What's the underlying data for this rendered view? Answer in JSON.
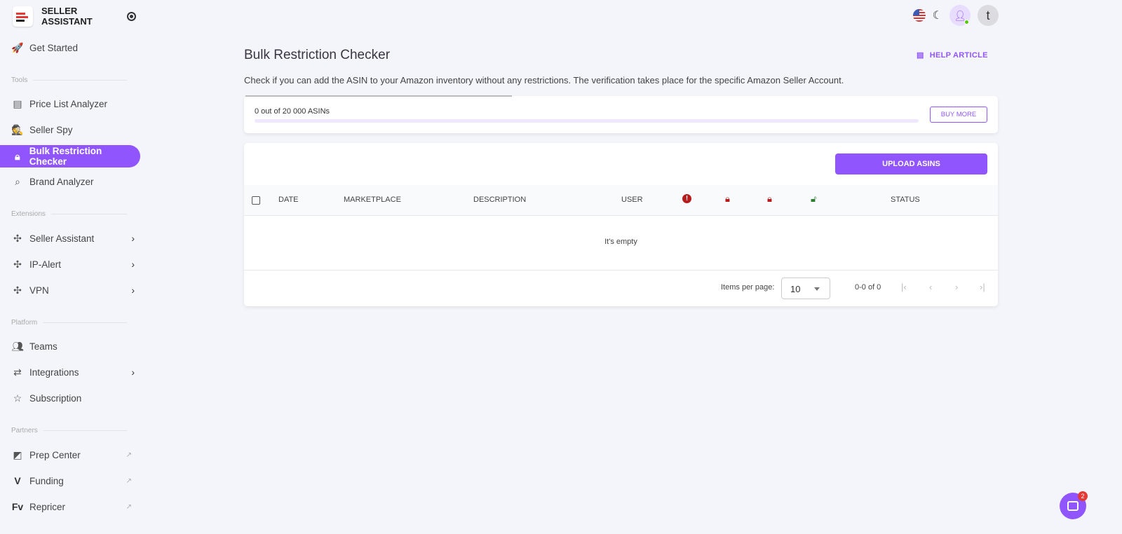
{
  "brand": {
    "name_line1": "SELLER",
    "name_line2": "ASSISTANT"
  },
  "nav": {
    "get_started": "Get Started",
    "sections": {
      "tools": "Tools",
      "extensions": "Extensions",
      "platform": "Platform",
      "partners": "Partners"
    },
    "tools": [
      {
        "label": "Price List Analyzer",
        "icon": "list-icon"
      },
      {
        "label": "Seller Spy",
        "icon": "spy-icon"
      },
      {
        "label": "Bulk Restriction Checker",
        "icon": "lock-icon",
        "active": true
      },
      {
        "label": "Brand Analyzer",
        "icon": "tag-search-icon"
      }
    ],
    "extensions": [
      {
        "label": "Seller Assistant"
      },
      {
        "label": "IP-Alert"
      },
      {
        "label": "VPN"
      }
    ],
    "platform": [
      {
        "label": "Teams"
      },
      {
        "label": "Integrations"
      },
      {
        "label": "Subscription"
      }
    ],
    "partners": [
      {
        "label": "Prep Center"
      },
      {
        "label": "Funding"
      },
      {
        "label": "Repricer",
        "logo": "Fv"
      }
    ]
  },
  "topbar": {
    "avatar_letter": "t"
  },
  "page": {
    "title": "Bulk Restriction Checker",
    "help": "HELP ARTICLE",
    "description": "Check if you can add the ASIN to your Amazon inventory without any restrictions. The verification takes place for the specific Amazon Seller Account."
  },
  "quota": {
    "label": "0 out of 20 000 ASINs",
    "used": 0,
    "total": 20000,
    "buy_more": "BUY MORE"
  },
  "table": {
    "upload": "UPLOAD ASINS",
    "columns": [
      "DATE",
      "MARKETPLACE",
      "DESCRIPTION",
      "USER",
      "STATUS"
    ],
    "empty": "It's empty",
    "status_icons": [
      {
        "icon": "alert-icon",
        "color": "#b71c1c"
      },
      {
        "icon": "lock-icon",
        "color": "#b71c1c"
      },
      {
        "icon": "lock-partial-icon",
        "color": "#b71c1c"
      },
      {
        "icon": "unlock-icon",
        "color": "#2e7d32"
      }
    ]
  },
  "pagination": {
    "items_per_page_label": "Items per page:",
    "items_per_page": "10",
    "range": "0-0 of 0"
  },
  "chat": {
    "badge": "2"
  },
  "colors": {
    "accent": "#9155fd",
    "background": "#f4f5fa"
  }
}
